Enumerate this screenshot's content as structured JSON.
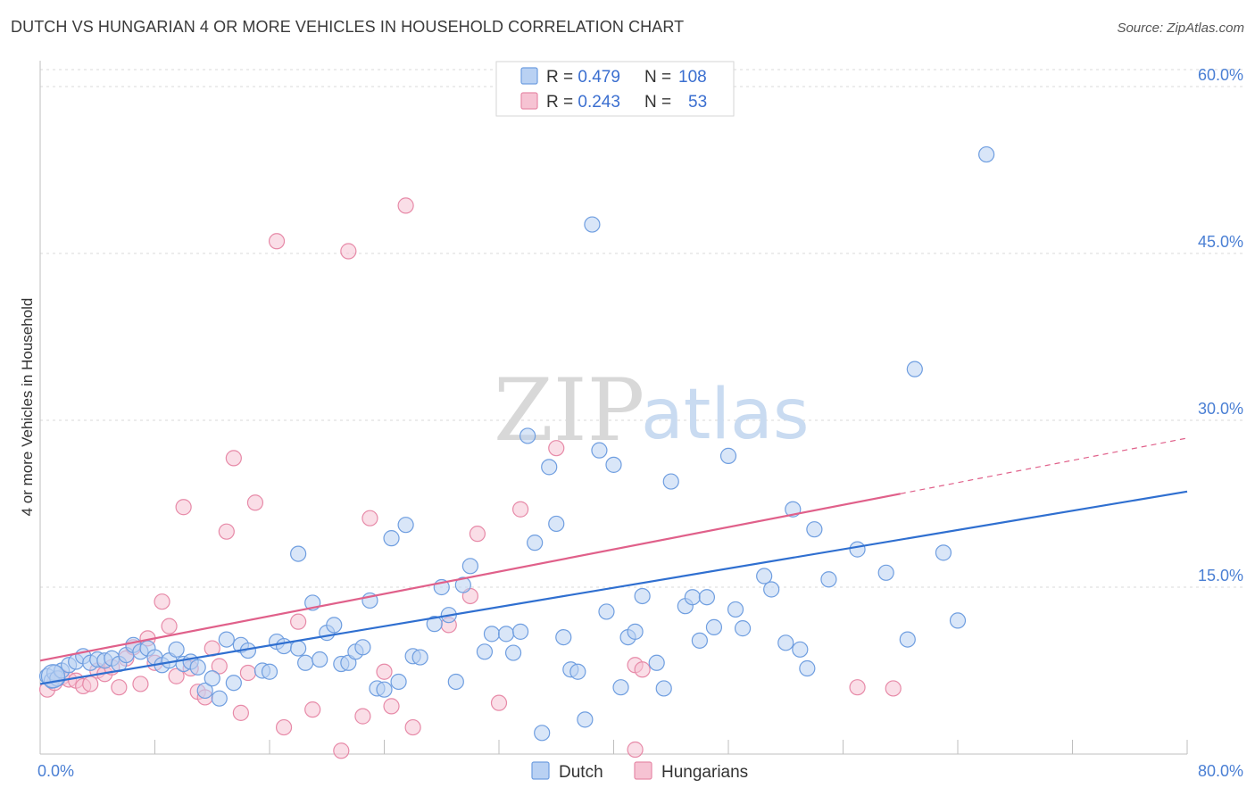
{
  "header": {
    "title": "DUTCH VS HUNGARIAN 4 OR MORE VEHICLES IN HOUSEHOLD CORRELATION CHART",
    "source": "Source: ZipAtlas.com"
  },
  "watermark": {
    "zip": "ZIP",
    "atlas": "atlas"
  },
  "colors": {
    "dutch": "#6f9ee0",
    "dutch_fill": "#b9d1f3",
    "dutch_line": "#2f6fd0",
    "hungarian": "#e78aa8",
    "hungarian_fill": "#f6c3d3",
    "hungarian_line": "#e0608a",
    "axis_tick_text": "#4a7fd4",
    "grid": "#d9d9d9"
  },
  "legend_stats": [
    {
      "r_label": "R = ",
      "r_value": "0.479",
      "n_label": "N = ",
      "n_value": "108"
    },
    {
      "r_label": "R = ",
      "r_value": "0.243",
      "n_label": "N = ",
      "n_value": "53"
    }
  ],
  "chart_data": {
    "type": "scatter",
    "title": "DUTCH VS HUNGARIAN 4 OR MORE VEHICLES IN HOUSEHOLD CORRELATION CHART",
    "ylabel": "4 or more Vehicles in Household",
    "xlim": [
      0,
      80
    ],
    "ylim": [
      0,
      62
    ],
    "x_tick_labels": [
      "0.0%",
      "80.0%"
    ],
    "y_ticks": [
      15,
      30,
      45,
      60
    ],
    "y_tick_labels": [
      "15.0%",
      "30.0%",
      "45.0%",
      "60.0%"
    ],
    "grid": "horizontal dashed",
    "legend_position": "top-center and bottom-center",
    "series": [
      {
        "name": "Dutch",
        "trend": {
          "x": [
            0,
            80
          ],
          "y": [
            6.3,
            23.6
          ],
          "dashed_from": null
        },
        "points": [
          [
            0.5,
            7.0
          ],
          [
            0.8,
            6.6
          ],
          [
            1.0,
            7.3
          ],
          [
            1.2,
            6.8
          ],
          [
            1.5,
            7.5
          ],
          [
            2.0,
            8.0
          ],
          [
            2.5,
            8.3
          ],
          [
            3.0,
            8.8
          ],
          [
            3.5,
            8.2
          ],
          [
            4.0,
            8.5
          ],
          [
            4.5,
            8.4
          ],
          [
            5.0,
            8.6
          ],
          [
            5.5,
            8.1
          ],
          [
            6.0,
            8.9
          ],
          [
            6.5,
            9.8
          ],
          [
            7.0,
            9.2
          ],
          [
            7.5,
            9.5
          ],
          [
            8.0,
            8.7
          ],
          [
            8.5,
            8.0
          ],
          [
            9.0,
            8.4
          ],
          [
            9.5,
            9.4
          ],
          [
            10.0,
            8.1
          ],
          [
            10.5,
            8.3
          ],
          [
            11.0,
            7.8
          ],
          [
            11.5,
            5.7
          ],
          [
            12.0,
            6.8
          ],
          [
            12.5,
            5.0
          ],
          [
            13.0,
            10.3
          ],
          [
            13.5,
            6.4
          ],
          [
            14.0,
            9.8
          ],
          [
            14.5,
            9.3
          ],
          [
            15.5,
            7.5
          ],
          [
            16.0,
            7.4
          ],
          [
            16.5,
            10.1
          ],
          [
            17.0,
            9.7
          ],
          [
            18.0,
            9.5
          ],
          [
            18.0,
            18.0
          ],
          [
            18.5,
            8.2
          ],
          [
            19.0,
            13.6
          ],
          [
            19.5,
            8.5
          ],
          [
            20.0,
            10.9
          ],
          [
            20.5,
            11.6
          ],
          [
            21.0,
            8.1
          ],
          [
            21.5,
            8.2
          ],
          [
            22.0,
            9.2
          ],
          [
            22.5,
            9.6
          ],
          [
            23.0,
            13.8
          ],
          [
            23.5,
            5.9
          ],
          [
            24.0,
            5.8
          ],
          [
            24.5,
            19.4
          ],
          [
            25.0,
            6.5
          ],
          [
            25.5,
            20.6
          ],
          [
            26.0,
            8.8
          ],
          [
            26.5,
            8.7
          ],
          [
            27.5,
            11.7
          ],
          [
            28.0,
            15.0
          ],
          [
            28.5,
            12.5
          ],
          [
            29.0,
            6.5
          ],
          [
            29.5,
            15.2
          ],
          [
            30.0,
            16.9
          ],
          [
            31.0,
            9.2
          ],
          [
            31.5,
            10.8
          ],
          [
            32.5,
            10.8
          ],
          [
            33.0,
            9.1
          ],
          [
            33.5,
            11.0
          ],
          [
            34.0,
            28.6
          ],
          [
            34.5,
            19.0
          ],
          [
            35.0,
            1.9
          ],
          [
            35.5,
            25.8
          ],
          [
            36.0,
            20.7
          ],
          [
            36.5,
            10.5
          ],
          [
            37.0,
            7.6
          ],
          [
            37.5,
            7.4
          ],
          [
            38.0,
            3.1
          ],
          [
            38.5,
            47.6
          ],
          [
            39.0,
            27.3
          ],
          [
            39.5,
            12.8
          ],
          [
            40.0,
            26.0
          ],
          [
            40.5,
            6.0
          ],
          [
            41.0,
            10.5
          ],
          [
            41.5,
            11.0
          ],
          [
            42.0,
            14.2
          ],
          [
            43.0,
            8.2
          ],
          [
            43.5,
            5.9
          ],
          [
            44.0,
            24.5
          ],
          [
            45.0,
            13.3
          ],
          [
            45.5,
            14.1
          ],
          [
            46.0,
            10.2
          ],
          [
            46.5,
            14.1
          ],
          [
            47.0,
            11.4
          ],
          [
            48.0,
            26.8
          ],
          [
            48.5,
            13.0
          ],
          [
            49.0,
            11.3
          ],
          [
            50.5,
            16.0
          ],
          [
            51.0,
            14.8
          ],
          [
            52.0,
            10.0
          ],
          [
            52.5,
            22.0
          ],
          [
            53.0,
            9.4
          ],
          [
            53.5,
            7.7
          ],
          [
            54.0,
            20.2
          ],
          [
            55.0,
            15.7
          ],
          [
            57.0,
            18.4
          ],
          [
            59.0,
            16.3
          ],
          [
            60.5,
            10.3
          ],
          [
            61.0,
            34.6
          ],
          [
            63.0,
            18.1
          ],
          [
            64.0,
            12.0
          ],
          [
            66.0,
            53.9
          ]
        ]
      },
      {
        "name": "Hungarians",
        "trend": {
          "x": [
            0,
            80
          ],
          "y": [
            8.4,
            28.4
          ],
          "dashed_from": 60
        },
        "points": [
          [
            0.5,
            5.8
          ],
          [
            1.0,
            6.4
          ],
          [
            1.5,
            6.9
          ],
          [
            2.0,
            6.7
          ],
          [
            2.5,
            6.6
          ],
          [
            3.0,
            6.1
          ],
          [
            3.5,
            6.3
          ],
          [
            4.0,
            7.5
          ],
          [
            4.5,
            7.2
          ],
          [
            5.0,
            7.8
          ],
          [
            5.5,
            6.0
          ],
          [
            6.0,
            8.6
          ],
          [
            6.5,
            9.6
          ],
          [
            7.0,
            6.3
          ],
          [
            7.5,
            10.4
          ],
          [
            8.0,
            8.2
          ],
          [
            8.5,
            13.7
          ],
          [
            9.0,
            11.5
          ],
          [
            9.5,
            7.0
          ],
          [
            10.0,
            22.2
          ],
          [
            10.5,
            7.7
          ],
          [
            11.0,
            5.6
          ],
          [
            11.5,
            5.1
          ],
          [
            12.0,
            9.5
          ],
          [
            12.5,
            7.9
          ],
          [
            13.0,
            20.0
          ],
          [
            13.5,
            26.6
          ],
          [
            14.0,
            3.7
          ],
          [
            14.5,
            7.3
          ],
          [
            15.0,
            22.6
          ],
          [
            16.5,
            46.1
          ],
          [
            17.0,
            2.4
          ],
          [
            18.0,
            11.9
          ],
          [
            19.0,
            4.0
          ],
          [
            21.0,
            0.3
          ],
          [
            21.5,
            45.2
          ],
          [
            22.5,
            3.4
          ],
          [
            23.0,
            21.2
          ],
          [
            24.0,
            7.4
          ],
          [
            24.5,
            4.3
          ],
          [
            25.5,
            49.3
          ],
          [
            26.0,
            2.4
          ],
          [
            28.5,
            11.6
          ],
          [
            30.0,
            14.2
          ],
          [
            30.5,
            19.8
          ],
          [
            32.0,
            4.6
          ],
          [
            33.5,
            22.0
          ],
          [
            36.0,
            27.5
          ],
          [
            41.5,
            0.4
          ],
          [
            41.5,
            8.0
          ],
          [
            42.0,
            7.6
          ],
          [
            57.0,
            6.0
          ],
          [
            59.5,
            5.9
          ]
        ]
      }
    ]
  }
}
